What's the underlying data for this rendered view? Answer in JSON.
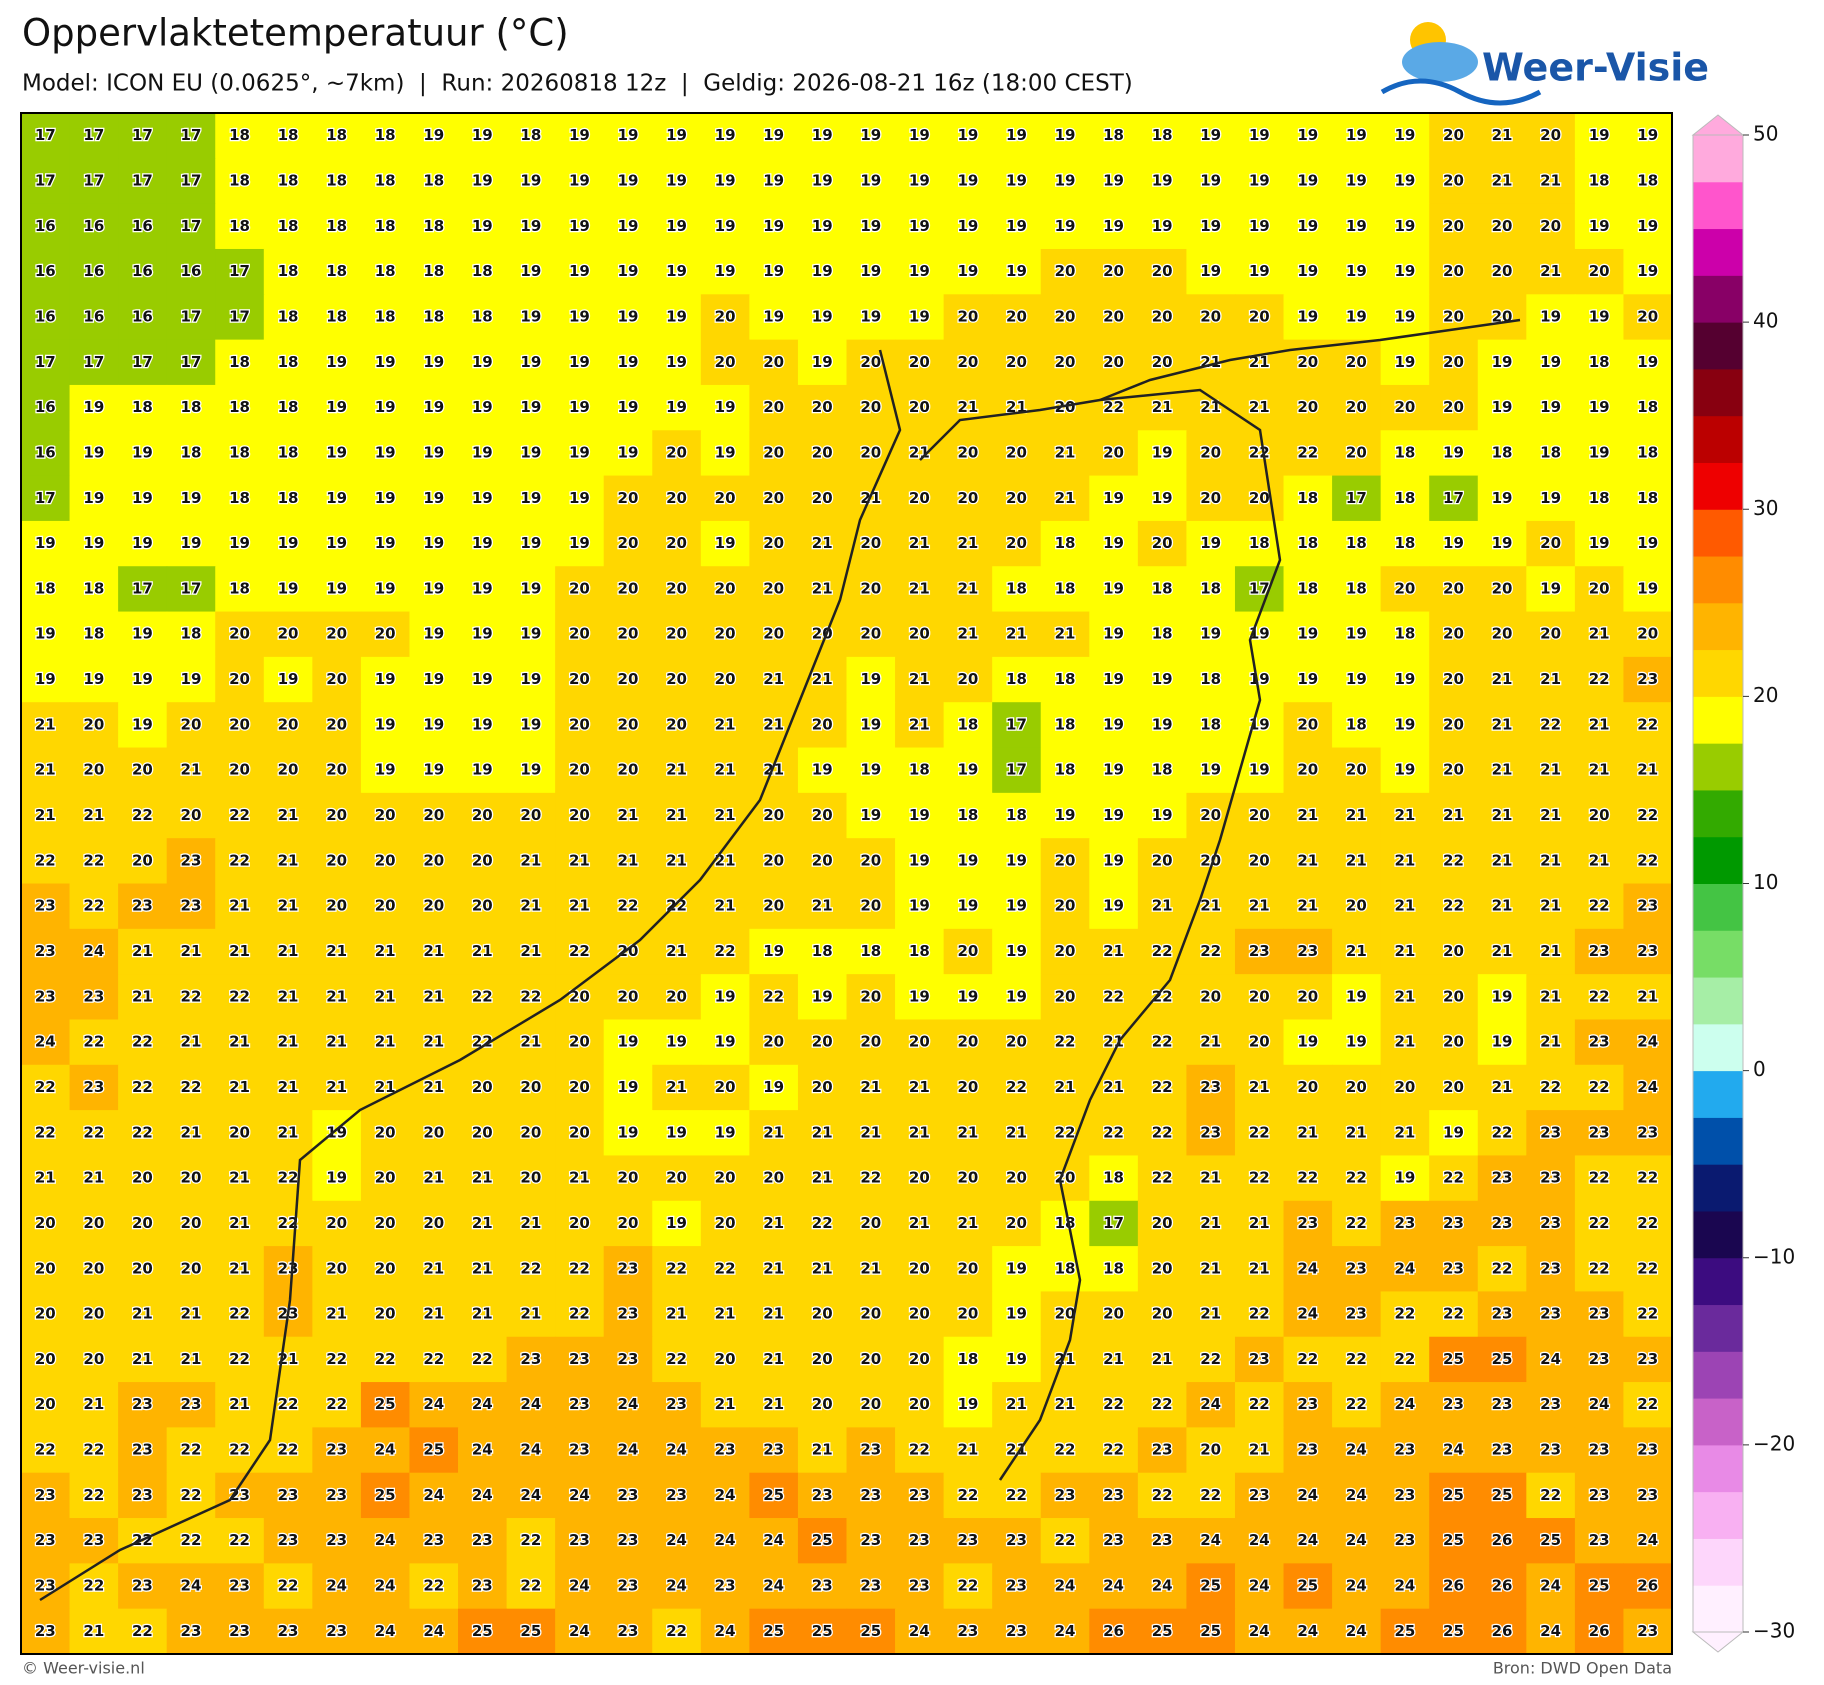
{
  "header": {
    "title": "Oppervlaktetemperatuur (°C)",
    "subtitle": "Model: ICON EU (0.0625°, ~7km)  |  Run: 20260818 12z  |  Geldig: 2026-08-21 16z (18:00 CEST)"
  },
  "logo": {
    "text": "Weer-Visie"
  },
  "chart_data": {
    "type": "heatmap",
    "values": [
      [
        17,
        17,
        17,
        17,
        18,
        18,
        18,
        18,
        19,
        19,
        18,
        19,
        19,
        19,
        19,
        19,
        19,
        19,
        19,
        19,
        19,
        19,
        18,
        18,
        19,
        19,
        19,
        19,
        19,
        20,
        21,
        20,
        19,
        19
      ],
      [
        17,
        17,
        17,
        17,
        18,
        18,
        18,
        18,
        18,
        19,
        19,
        19,
        19,
        19,
        19,
        19,
        19,
        19,
        19,
        19,
        19,
        19,
        19,
        19,
        19,
        19,
        19,
        19,
        19,
        20,
        21,
        21,
        18,
        18
      ],
      [
        16,
        16,
        16,
        17,
        18,
        18,
        18,
        18,
        18,
        19,
        19,
        19,
        19,
        19,
        19,
        19,
        19,
        19,
        19,
        19,
        19,
        19,
        19,
        19,
        19,
        19,
        19,
        19,
        19,
        20,
        20,
        20,
        19,
        19
      ],
      [
        16,
        16,
        16,
        16,
        17,
        18,
        18,
        18,
        18,
        18,
        19,
        19,
        19,
        19,
        19,
        19,
        19,
        19,
        19,
        19,
        19,
        20,
        20,
        20,
        19,
        19,
        19,
        19,
        19,
        20,
        20,
        21,
        20,
        19
      ],
      [
        16,
        16,
        16,
        17,
        17,
        18,
        18,
        18,
        18,
        18,
        19,
        19,
        19,
        19,
        20,
        19,
        19,
        19,
        19,
        20,
        20,
        20,
        20,
        20,
        20,
        20,
        19,
        19,
        19,
        20,
        20,
        19,
        19,
        20
      ],
      [
        17,
        17,
        17,
        17,
        18,
        18,
        19,
        19,
        19,
        19,
        19,
        19,
        19,
        19,
        20,
        20,
        19,
        20,
        20,
        20,
        20,
        20,
        20,
        20,
        21,
        21,
        20,
        20,
        19,
        20,
        19,
        19,
        18,
        19
      ],
      [
        16,
        19,
        18,
        18,
        18,
        18,
        19,
        19,
        19,
        19,
        19,
        19,
        19,
        19,
        19,
        20,
        20,
        20,
        20,
        21,
        21,
        20,
        22,
        21,
        21,
        21,
        20,
        20,
        20,
        20,
        19,
        19,
        19,
        18
      ],
      [
        16,
        19,
        19,
        18,
        18,
        18,
        19,
        19,
        19,
        19,
        19,
        19,
        19,
        20,
        19,
        20,
        20,
        20,
        21,
        20,
        20,
        21,
        20,
        19,
        20,
        22,
        22,
        20,
        18,
        19,
        18,
        18,
        19,
        18
      ],
      [
        17,
        19,
        19,
        19,
        18,
        18,
        19,
        19,
        19,
        19,
        19,
        19,
        20,
        20,
        20,
        20,
        20,
        21,
        20,
        20,
        20,
        21,
        19,
        19,
        20,
        20,
        18,
        17,
        18,
        17,
        19,
        19,
        18,
        18
      ],
      [
        19,
        19,
        19,
        19,
        19,
        19,
        19,
        19,
        19,
        19,
        19,
        19,
        20,
        20,
        19,
        20,
        21,
        20,
        21,
        21,
        20,
        18,
        19,
        20,
        19,
        18,
        18,
        18,
        18,
        19,
        19,
        20,
        19,
        19
      ],
      [
        18,
        18,
        17,
        17,
        18,
        19,
        19,
        19,
        19,
        19,
        19,
        20,
        20,
        20,
        20,
        20,
        21,
        20,
        21,
        21,
        18,
        18,
        19,
        18,
        18,
        17,
        18,
        18,
        20,
        20,
        20,
        19,
        20,
        19
      ],
      [
        19,
        18,
        19,
        18,
        20,
        20,
        20,
        20,
        19,
        19,
        19,
        20,
        20,
        20,
        20,
        20,
        20,
        20,
        20,
        21,
        21,
        21,
        19,
        18,
        19,
        19,
        19,
        19,
        18,
        20,
        20,
        20,
        21,
        20
      ],
      [
        19,
        19,
        19,
        19,
        20,
        19,
        20,
        19,
        19,
        19,
        19,
        20,
        20,
        20,
        20,
        21,
        21,
        19,
        21,
        20,
        18,
        18,
        19,
        19,
        18,
        19,
        19,
        19,
        19,
        20,
        21,
        21,
        22,
        23
      ],
      [
        21,
        20,
        19,
        20,
        20,
        20,
        20,
        19,
        19,
        19,
        19,
        20,
        20,
        20,
        21,
        21,
        20,
        19,
        21,
        18,
        17,
        18,
        19,
        19,
        18,
        19,
        20,
        18,
        19,
        20,
        21,
        22,
        21,
        22
      ],
      [
        21,
        20,
        20,
        21,
        20,
        20,
        20,
        19,
        19,
        19,
        19,
        20,
        20,
        21,
        21,
        21,
        19,
        19,
        18,
        19,
        17,
        18,
        19,
        18,
        19,
        19,
        20,
        20,
        19,
        20,
        21,
        21,
        21,
        21
      ],
      [
        21,
        21,
        22,
        20,
        22,
        21,
        20,
        20,
        20,
        20,
        20,
        20,
        21,
        21,
        21,
        20,
        20,
        19,
        19,
        18,
        18,
        19,
        19,
        19,
        20,
        20,
        21,
        21,
        21,
        21,
        21,
        21,
        20,
        22
      ],
      [
        22,
        22,
        20,
        23,
        22,
        21,
        20,
        20,
        20,
        20,
        21,
        21,
        21,
        21,
        21,
        20,
        20,
        20,
        19,
        19,
        19,
        20,
        19,
        20,
        20,
        20,
        21,
        21,
        21,
        22,
        21,
        21,
        21,
        22
      ],
      [
        23,
        22,
        23,
        23,
        21,
        21,
        20,
        20,
        20,
        20,
        21,
        21,
        22,
        22,
        21,
        20,
        21,
        20,
        19,
        19,
        19,
        20,
        19,
        21,
        21,
        21,
        21,
        20,
        21,
        22,
        21,
        21,
        22,
        23
      ],
      [
        23,
        24,
        21,
        21,
        21,
        21,
        21,
        21,
        21,
        21,
        21,
        22,
        20,
        21,
        22,
        19,
        18,
        18,
        18,
        20,
        19,
        20,
        21,
        22,
        22,
        23,
        23,
        21,
        21,
        20,
        21,
        21,
        23,
        23
      ],
      [
        23,
        23,
        21,
        22,
        22,
        21,
        21,
        21,
        21,
        22,
        22,
        20,
        20,
        20,
        19,
        22,
        19,
        20,
        19,
        19,
        19,
        20,
        22,
        22,
        20,
        20,
        20,
        19,
        21,
        20,
        19,
        21,
        22,
        21
      ],
      [
        24,
        22,
        22,
        21,
        21,
        21,
        21,
        21,
        21,
        22,
        21,
        20,
        19,
        19,
        19,
        20,
        20,
        20,
        20,
        20,
        20,
        22,
        21,
        22,
        21,
        20,
        19,
        19,
        21,
        20,
        19,
        21,
        23,
        24
      ],
      [
        22,
        23,
        22,
        22,
        21,
        21,
        21,
        21,
        21,
        20,
        20,
        20,
        19,
        21,
        20,
        19,
        20,
        21,
        21,
        20,
        22,
        21,
        21,
        22,
        23,
        21,
        20,
        20,
        20,
        20,
        21,
        22,
        22,
        24
      ],
      [
        22,
        22,
        22,
        21,
        20,
        21,
        19,
        20,
        20,
        20,
        20,
        20,
        19,
        19,
        19,
        21,
        21,
        21,
        21,
        21,
        21,
        22,
        22,
        22,
        23,
        22,
        21,
        21,
        21,
        19,
        22,
        23,
        23,
        23
      ],
      [
        21,
        21,
        20,
        20,
        21,
        22,
        19,
        20,
        21,
        21,
        20,
        21,
        20,
        20,
        20,
        20,
        21,
        22,
        20,
        20,
        20,
        20,
        18,
        22,
        21,
        22,
        22,
        22,
        19,
        22,
        23,
        23,
        22,
        22
      ],
      [
        20,
        20,
        20,
        20,
        21,
        22,
        20,
        20,
        20,
        21,
        21,
        20,
        20,
        19,
        20,
        21,
        22,
        20,
        21,
        21,
        20,
        18,
        17,
        20,
        21,
        21,
        23,
        22,
        23,
        23,
        23,
        23,
        22,
        22
      ],
      [
        20,
        20,
        20,
        20,
        21,
        23,
        20,
        20,
        21,
        21,
        22,
        22,
        23,
        22,
        22,
        21,
        21,
        21,
        20,
        20,
        19,
        18,
        18,
        20,
        21,
        21,
        24,
        23,
        24,
        23,
        22,
        23,
        22,
        22
      ],
      [
        20,
        20,
        21,
        21,
        22,
        23,
        21,
        20,
        21,
        21,
        21,
        22,
        23,
        21,
        21,
        21,
        20,
        20,
        20,
        20,
        19,
        20,
        20,
        20,
        21,
        22,
        24,
        23,
        22,
        22,
        23,
        23,
        23,
        22
      ],
      [
        20,
        20,
        21,
        21,
        22,
        21,
        22,
        22,
        22,
        22,
        23,
        23,
        23,
        22,
        20,
        21,
        20,
        20,
        20,
        18,
        19,
        21,
        21,
        21,
        22,
        23,
        22,
        22,
        22,
        25,
        25,
        24,
        23,
        23
      ],
      [
        20,
        21,
        23,
        23,
        21,
        22,
        22,
        25,
        24,
        24,
        24,
        23,
        24,
        23,
        21,
        21,
        20,
        20,
        20,
        19,
        21,
        21,
        22,
        22,
        24,
        22,
        23,
        22,
        24,
        23,
        23,
        23,
        24,
        22
      ],
      [
        22,
        22,
        23,
        22,
        22,
        22,
        23,
        24,
        25,
        24,
        24,
        23,
        24,
        24,
        23,
        23,
        21,
        23,
        22,
        21,
        21,
        22,
        22,
        23,
        20,
        21,
        23,
        24,
        23,
        24,
        23,
        23,
        23,
        23
      ],
      [
        23,
        22,
        23,
        22,
        23,
        23,
        23,
        25,
        24,
        24,
        24,
        24,
        23,
        23,
        24,
        25,
        23,
        23,
        23,
        22,
        22,
        23,
        23,
        22,
        22,
        23,
        24,
        24,
        23,
        25,
        25,
        22,
        23,
        23
      ],
      [
        23,
        23,
        22,
        22,
        22,
        23,
        23,
        24,
        23,
        23,
        22,
        23,
        23,
        24,
        24,
        24,
        25,
        23,
        23,
        23,
        23,
        22,
        23,
        23,
        24,
        24,
        24,
        24,
        23,
        25,
        26,
        25,
        23,
        24
      ],
      [
        23,
        22,
        23,
        24,
        23,
        22,
        24,
        24,
        22,
        23,
        22,
        24,
        23,
        24,
        23,
        24,
        23,
        23,
        23,
        22,
        23,
        24,
        24,
        24,
        25,
        24,
        25,
        24,
        24,
        26,
        26,
        24,
        25,
        26
      ],
      [
        23,
        21,
        22,
        23,
        23,
        23,
        23,
        24,
        24,
        25,
        25,
        24,
        23,
        22,
        24,
        25,
        25,
        25,
        24,
        23,
        23,
        24,
        26,
        25,
        25,
        24,
        24,
        24,
        25,
        25,
        26,
        24,
        26,
        23
      ]
    ],
    "colorbar": {
      "ylim": [
        -30,
        50
      ],
      "yticks": [
        50,
        40,
        30,
        20,
        10,
        0,
        {
          "value": -10,
          "label": "−10"
        },
        {
          "value": -20,
          "label": "−20"
        },
        {
          "value": -30,
          "label": "−30"
        }
      ],
      "colors": [
        "#fff0ff",
        "#fdd6fb",
        "#f8b0f2",
        "#e88ae6",
        "#c862c8",
        "#9c44b4",
        "#6a2a9c",
        "#3c0c80",
        "#1a0650",
        "#0a1a70",
        "#0050aa",
        "#22aaee",
        "#ccffee",
        "#a6eea6",
        "#77dd66",
        "#44c444",
        "#009900",
        "#33aa00",
        "#99cc00",
        "#ffff00",
        "#ffd700",
        "#ffb400",
        "#ff8c00",
        "#ff5a00",
        "#ee0000",
        "#bb0000",
        "#880010",
        "#550030",
        "#880066",
        "#cc00aa",
        "#ff55cc",
        "#ffaadd"
      ]
    }
  },
  "footer": {
    "left": "© Weer-visie.nl",
    "right": "Bron: DWD Open Data"
  }
}
